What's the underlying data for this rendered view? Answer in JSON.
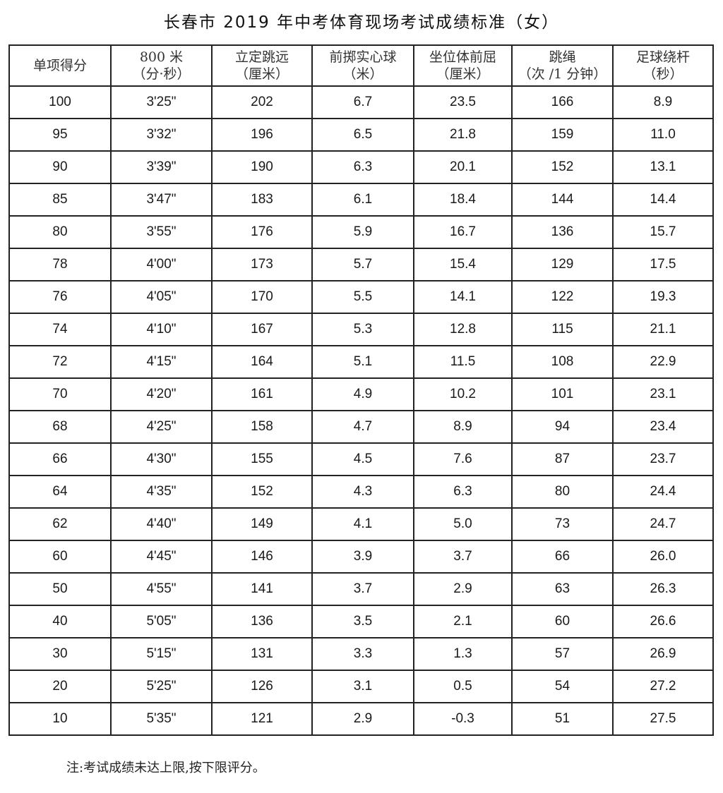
{
  "title": "长春市 2019 年中考体育现场考试成绩标准（女）",
  "table": {
    "headers": [
      {
        "line1": "单项得分",
        "line2": ""
      },
      {
        "line1": "800 米",
        "line2": "（分·秒）"
      },
      {
        "line1": "立定跳远",
        "line2": "（厘米）"
      },
      {
        "line1": "前掷实心球",
        "line2": "（米）"
      },
      {
        "line1": "坐位体前屈",
        "line2": "（厘米）"
      },
      {
        "line1": "跳绳",
        "line2": "（次 /1 分钟）"
      },
      {
        "line1": "足球绕杆",
        "line2": "（秒）"
      }
    ],
    "rows": [
      [
        "100",
        "3'25\"",
        "202",
        "6.7",
        "23.5",
        "166",
        "8.9"
      ],
      [
        "95",
        "3'32\"",
        "196",
        "6.5",
        "21.8",
        "159",
        "11.0"
      ],
      [
        "90",
        "3'39\"",
        "190",
        "6.3",
        "20.1",
        "152",
        "13.1"
      ],
      [
        "85",
        "3'47\"",
        "183",
        "6.1",
        "18.4",
        "144",
        "14.4"
      ],
      [
        "80",
        "3'55\"",
        "176",
        "5.9",
        "16.7",
        "136",
        "15.7"
      ],
      [
        "78",
        "4'00\"",
        "173",
        "5.7",
        "15.4",
        "129",
        "17.5"
      ],
      [
        "76",
        "4'05\"",
        "170",
        "5.5",
        "14.1",
        "122",
        "19.3"
      ],
      [
        "74",
        "4'10\"",
        "167",
        "5.3",
        "12.8",
        "115",
        "21.1"
      ],
      [
        "72",
        "4'15\"",
        "164",
        "5.1",
        "11.5",
        "108",
        "22.9"
      ],
      [
        "70",
        "4'20\"",
        "161",
        "4.9",
        "10.2",
        "101",
        "23.1"
      ],
      [
        "68",
        "4'25\"",
        "158",
        "4.7",
        "8.9",
        "94",
        "23.4"
      ],
      [
        "66",
        "4'30\"",
        "155",
        "4.5",
        "7.6",
        "87",
        "23.7"
      ],
      [
        "64",
        "4'35\"",
        "152",
        "4.3",
        "6.3",
        "80",
        "24.4"
      ],
      [
        "62",
        "4'40\"",
        "149",
        "4.1",
        "5.0",
        "73",
        "24.7"
      ],
      [
        "60",
        "4'45\"",
        "146",
        "3.9",
        "3.7",
        "66",
        "26.0"
      ],
      [
        "50",
        "4'55\"",
        "141",
        "3.7",
        "2.9",
        "63",
        "26.3"
      ],
      [
        "40",
        "5'05\"",
        "136",
        "3.5",
        "2.1",
        "60",
        "26.6"
      ],
      [
        "30",
        "5'15\"",
        "131",
        "3.3",
        "1.3",
        "57",
        "26.9"
      ],
      [
        "20",
        "5'25\"",
        "126",
        "3.1",
        "0.5",
        "54",
        "27.2"
      ],
      [
        "10",
        "5'35\"",
        "121",
        "2.9",
        "-0.3",
        "51",
        "27.5"
      ]
    ]
  },
  "footnote": "注:考试成绩未达上限,按下限评分。"
}
